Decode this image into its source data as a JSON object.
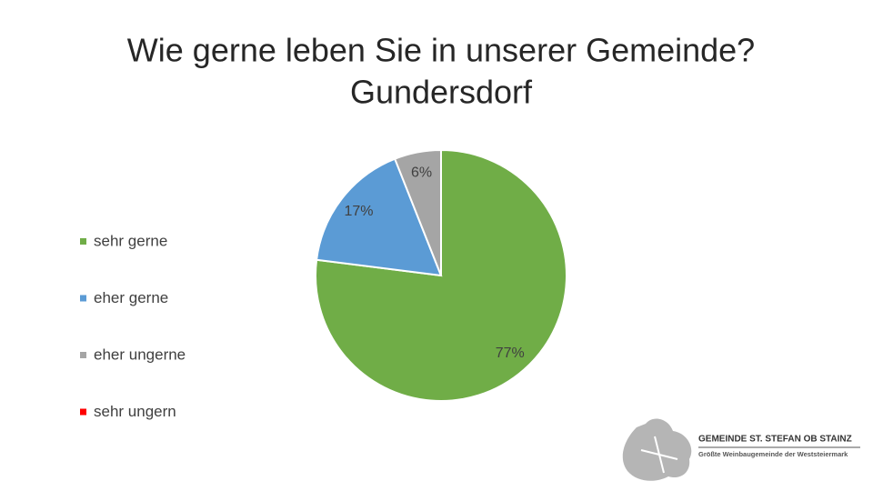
{
  "chart_data": {
    "type": "pie",
    "title": [
      "Wie gerne leben Sie in unserer Gemeinde?",
      "Gundersdorf"
    ],
    "categories": [
      "sehr gerne",
      "eher  gerne",
      "eher ungerne",
      "sehr ungern"
    ],
    "values": [
      77,
      17,
      6,
      0
    ],
    "value_labels": [
      "77%",
      "17%",
      "6%",
      null
    ],
    "colors": [
      "#70ad47",
      "#5b9bd5",
      "#a5a5a5",
      "#ff0000"
    ],
    "legend": "left"
  },
  "logo": {
    "name": "GEMEINDE  ST. STEFAN OB STAINZ",
    "tagline": "Größte Weinbaugemeinde der Weststeiermark"
  }
}
